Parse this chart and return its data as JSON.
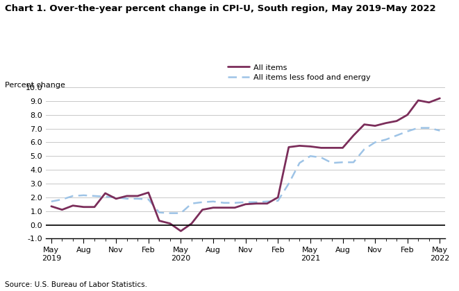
{
  "title": "Chart 1. Over-the-year percent change in CPI-U, South region, May 2019–May 2022",
  "ylabel": "Percent change",
  "source": "Source: U.S. Bureau of Labor Statistics.",
  "ylim": [
    -1.0,
    10.0
  ],
  "all_items_color": "#7B2D5A",
  "core_color": "#9DC3E6",
  "background_color": "#FFFFFF",
  "grid_color": "#C8C8C8",
  "zero_line_color": "#000000",
  "all_items_vals": [
    1.35,
    1.1,
    1.4,
    1.3,
    1.3,
    2.3,
    1.9,
    2.1,
    2.1,
    2.35,
    0.3,
    0.1,
    -0.45,
    0.1,
    1.1,
    1.25,
    1.25,
    1.25,
    1.5,
    1.55,
    1.55,
    2.0,
    5.65,
    5.75,
    5.7,
    5.6,
    5.6,
    5.6,
    6.5,
    7.3,
    7.2,
    7.4,
    7.55,
    8.0,
    9.05,
    8.9,
    9.2
  ],
  "core_items_vals": [
    1.7,
    1.85,
    2.1,
    2.15,
    2.1,
    2.05,
    2.0,
    1.9,
    1.9,
    1.85,
    0.9,
    0.85,
    0.85,
    1.55,
    1.65,
    1.7,
    1.6,
    1.6,
    1.65,
    1.65,
    1.7,
    1.75,
    3.0,
    4.5,
    5.0,
    4.9,
    4.5,
    4.55,
    4.55,
    5.5,
    6.0,
    6.2,
    6.5,
    6.8,
    7.05,
    7.05,
    6.85
  ],
  "tick_positions": [
    0,
    3,
    6,
    9,
    12,
    15,
    18,
    21,
    24,
    27,
    30,
    33,
    36
  ],
  "tick_labels_line1": [
    "May",
    "Aug",
    "Nov",
    "Feb",
    "May",
    "Aug",
    "Nov",
    "Feb",
    "May",
    "Aug",
    "Nov",
    "Feb",
    "May"
  ],
  "tick_labels_line2": [
    "2019",
    "",
    "",
    "",
    "2020",
    "",
    "",
    "",
    "2021",
    "",
    "",
    "",
    "2022"
  ]
}
